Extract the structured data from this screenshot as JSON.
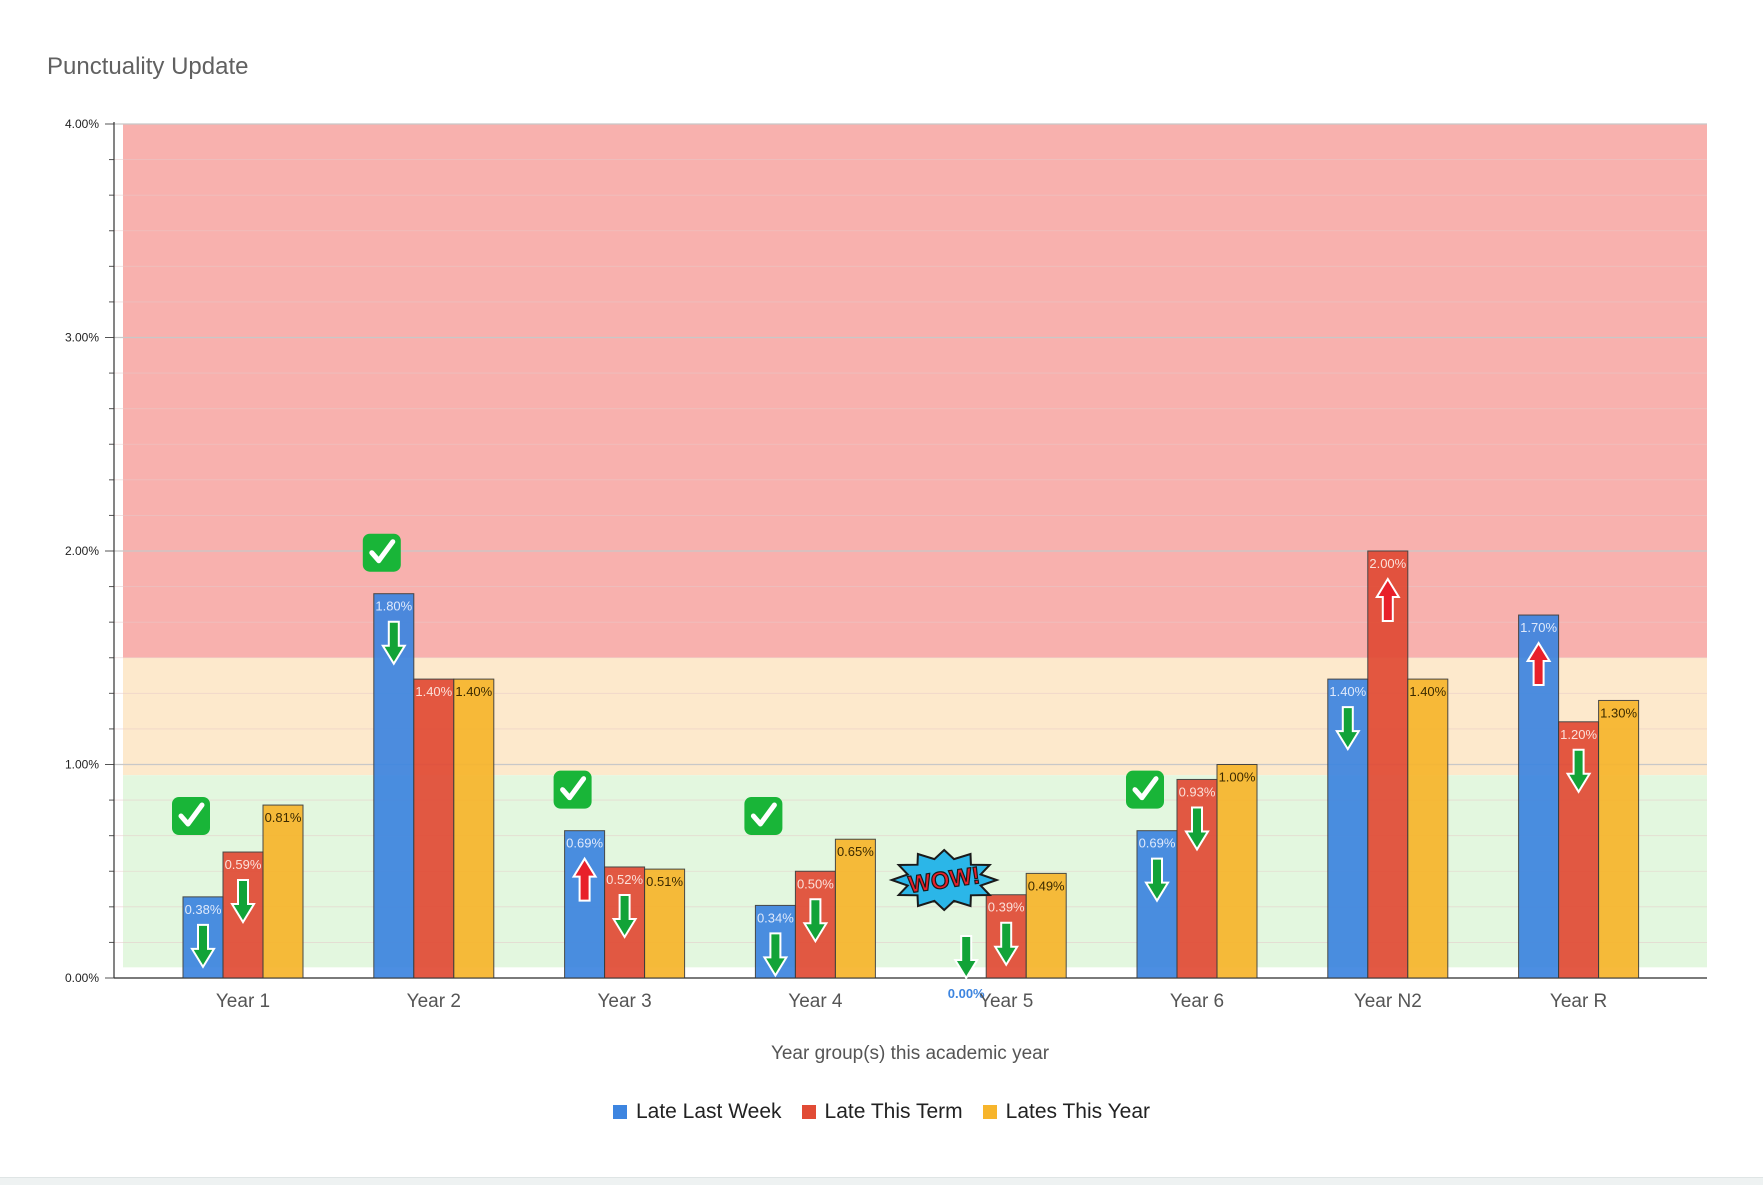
{
  "colors": {
    "late_last_week": "#3d85e0",
    "late_this_term": "#e14b35",
    "lates_this_year": "#f7b52c",
    "zone_red": "#f8b1ae",
    "zone_amber": "#fde9cc",
    "zone_green": "#e3f7df",
    "arrow_down": "#12a338",
    "arrow_up": "#e8202a",
    "check": "#19b538"
  },
  "chart_data": {
    "type": "bar",
    "title": "Punctuality Update",
    "xlabel": "Year group(s) this academic year",
    "ylabel": "",
    "ylim": [
      0,
      4
    ],
    "y_ticks": [
      0,
      1,
      2,
      3,
      4
    ],
    "y_tick_labels": [
      "0.00%",
      "1.00%",
      "2.00%",
      "3.00%",
      "4.00%"
    ],
    "grid": true,
    "legend_position": "bottom",
    "categories": [
      "Year 1",
      "Year 2",
      "Year 3",
      "Year 4",
      "Year 5",
      "Year 6",
      "Year N2",
      "Year R"
    ],
    "series": [
      {
        "name": "Late Last Week",
        "values": [
          0.38,
          1.8,
          0.69,
          0.34,
          0.0,
          0.69,
          1.4,
          1.7
        ],
        "labels": [
          "0.38%",
          "1.80%",
          "0.69%",
          "0.34%",
          "0.00%",
          "0.69%",
          "1.40%",
          "1.70%"
        ]
      },
      {
        "name": "Late This Term",
        "values": [
          0.59,
          1.4,
          0.52,
          0.5,
          0.39,
          0.93,
          2.0,
          1.2
        ],
        "labels": [
          "0.59%",
          "1.40%",
          "0.52%",
          "0.50%",
          "0.39%",
          "0.93%",
          "2.00%",
          "1.20%"
        ]
      },
      {
        "name": "Lates This Year",
        "values": [
          0.81,
          1.4,
          0.51,
          0.65,
          0.49,
          1.0,
          1.4,
          1.3
        ],
        "labels": [
          "0.81%",
          "1.40%",
          "0.51%",
          "0.65%",
          "0.49%",
          "1.00%",
          "1.40%",
          "1.30%"
        ]
      }
    ],
    "zones": [
      {
        "name": "red",
        "from": 1.5,
        "to": 4.0
      },
      {
        "name": "amber",
        "from": 0.95,
        "to": 1.5
      },
      {
        "name": "green",
        "from": 0.05,
        "to": 0.95
      }
    ],
    "annotations": {
      "arrows": [
        {
          "category": 0,
          "series": 0,
          "direction": "down"
        },
        {
          "category": 0,
          "series": 1,
          "direction": "down"
        },
        {
          "category": 1,
          "series": 0,
          "direction": "down"
        },
        {
          "category": 2,
          "series": 0,
          "direction": "up"
        },
        {
          "category": 2,
          "series": 1,
          "direction": "down"
        },
        {
          "category": 3,
          "series": 0,
          "direction": "down"
        },
        {
          "category": 3,
          "series": 1,
          "direction": "down"
        },
        {
          "category": 4,
          "series": 0,
          "direction": "down"
        },
        {
          "category": 4,
          "series": 1,
          "direction": "down"
        },
        {
          "category": 5,
          "series": 0,
          "direction": "down"
        },
        {
          "category": 5,
          "series": 1,
          "direction": "down"
        },
        {
          "category": 6,
          "series": 0,
          "direction": "down"
        },
        {
          "category": 6,
          "series": 1,
          "direction": "up"
        },
        {
          "category": 7,
          "series": 0,
          "direction": "up"
        },
        {
          "category": 7,
          "series": 1,
          "direction": "down"
        }
      ],
      "checkmarks": [
        0,
        1,
        2,
        3,
        5
      ],
      "sticker": {
        "text": "WOW!",
        "category": 4
      }
    }
  }
}
